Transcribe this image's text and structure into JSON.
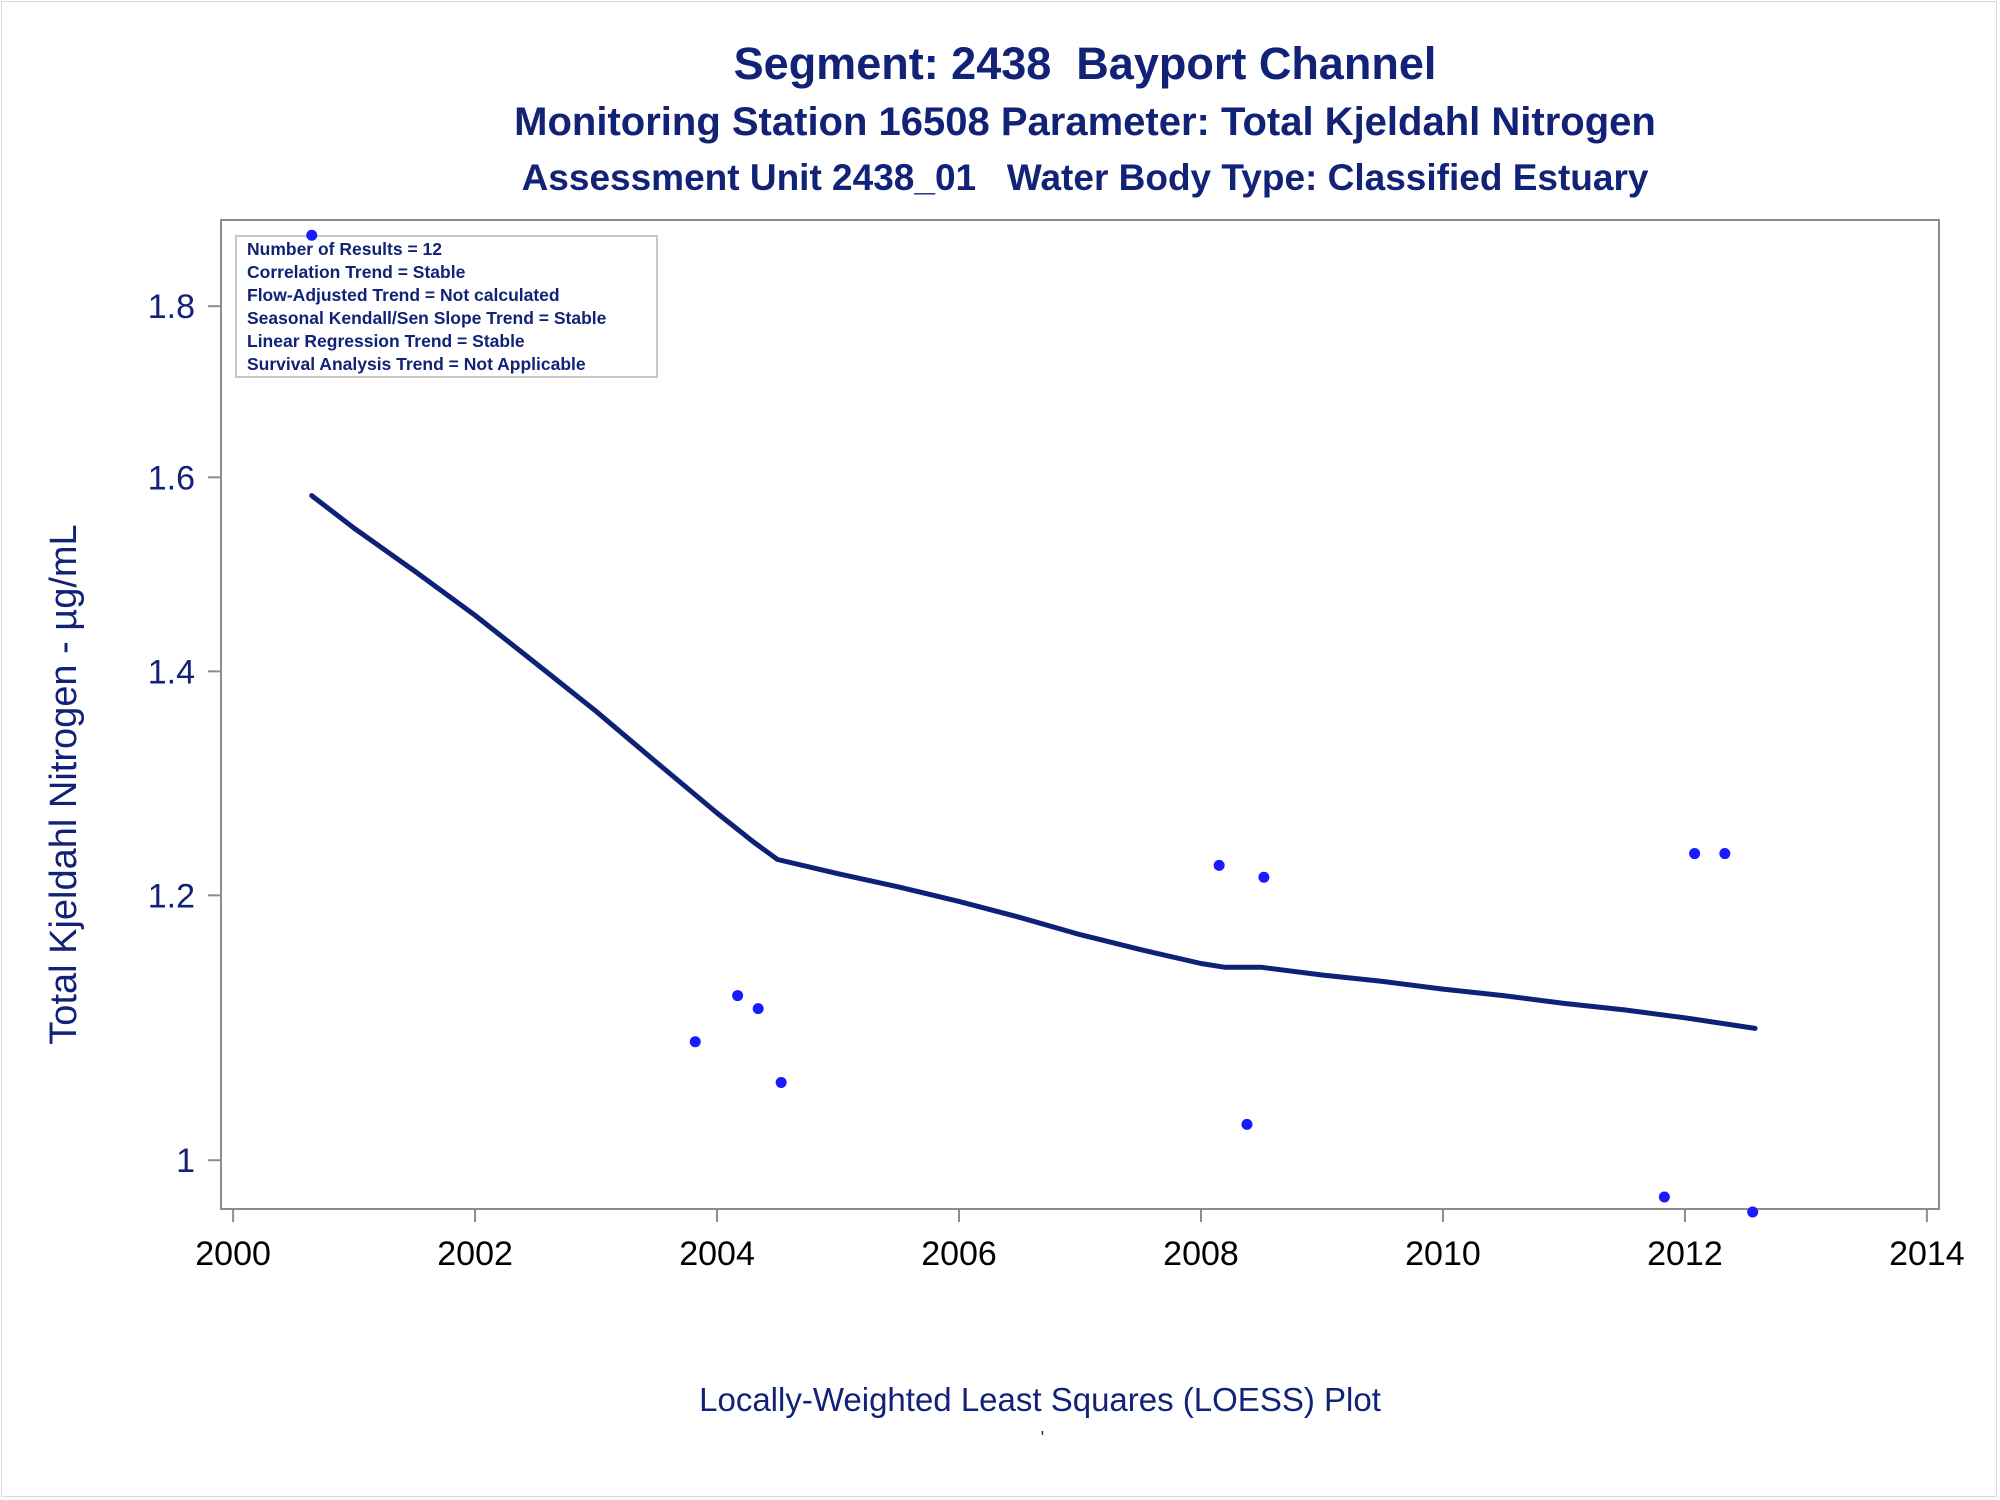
{
  "titles": {
    "line1": "Segment: 2438  Bayport Channel",
    "line2": "Monitoring Station 16508 Parameter: Total Kjeldahl Nitrogen",
    "line3": "Assessment Unit 2438_01   Water Body Type: Classified Estuary"
  },
  "inset": {
    "lines": [
      "Number of Results = 12",
      "Correlation Trend = Stable",
      "Flow-Adjusted Trend = Not calculated",
      "Seasonal Kendall/Sen Slope Trend = Stable",
      "Linear Regression Trend = Stable",
      "Survival Analysis Trend = Not Applicable"
    ]
  },
  "footnote": "Locally-Weighted Least Squares (LOESS) Plot",
  "footnote_mark": "'",
  "colors": {
    "text": "#112277",
    "points": "#1a1aff",
    "loess_line": "#0d2277",
    "axis": "#8c8c8c",
    "inset_border": "#c8c8c8"
  },
  "chart_data": {
    "type": "scatter",
    "xlabel": "",
    "ylabel": "Total Kjeldahl Nitrogen -  µg/mL",
    "x_ticks": [
      2000,
      2002,
      2004,
      2006,
      2008,
      2010,
      2012,
      2014
    ],
    "y_ticks": [
      1,
      1.2,
      1.4,
      1.6,
      1.8
    ],
    "xlim": [
      1999.9,
      2014.1
    ],
    "y_scale": "log",
    "ylim": [
      0.967,
      1.91
    ],
    "grid": false,
    "series": [
      {
        "kind": "points",
        "x": [
          2000.65,
          2003.82,
          2004.17,
          2004.34,
          2004.53,
          2008.15,
          2008.38,
          2008.52,
          2011.83,
          2012.08,
          2012.33,
          2012.56
        ],
        "y": [
          1.89,
          1.085,
          1.12,
          1.11,
          1.055,
          1.225,
          1.025,
          1.215,
          0.975,
          1.235,
          1.235,
          0.965
        ]
      },
      {
        "kind": "loess_line",
        "x": [
          2000.65,
          2001.0,
          2001.5,
          2002.0,
          2002.5,
          2003.0,
          2003.5,
          2004.0,
          2004.3,
          2004.5,
          2005.0,
          2005.5,
          2006.0,
          2006.5,
          2007.0,
          2007.5,
          2008.0,
          2008.2,
          2008.5,
          2009.0,
          2009.5,
          2010.0,
          2010.5,
          2011.0,
          2011.5,
          2012.0,
          2012.58
        ],
        "y": [
          1.58,
          1.545,
          1.5,
          1.455,
          1.408,
          1.362,
          1.315,
          1.27,
          1.245,
          1.23,
          1.218,
          1.207,
          1.195,
          1.182,
          1.168,
          1.156,
          1.145,
          1.142,
          1.142,
          1.136,
          1.131,
          1.125,
          1.12,
          1.114,
          1.109,
          1.103,
          1.095
        ]
      }
    ]
  }
}
